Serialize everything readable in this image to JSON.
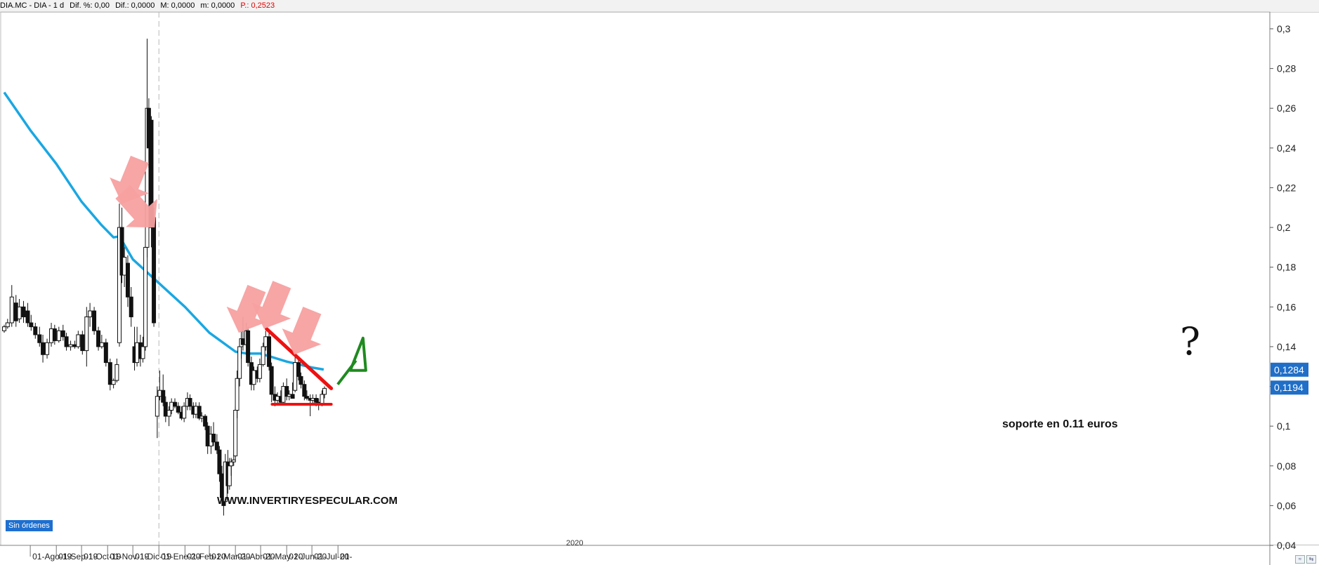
{
  "header": {
    "symbol": "DIA.MC - DIA - 1 d",
    "dif_pct": "Dif. %: 0,00",
    "dif": "Dif.: 0,0000",
    "max": "M: 0,0000",
    "min": "m: 0,0000",
    "price": "P.: 0,2523"
  },
  "watermark": "WWW.INVERTIRYESPECULAR.COM",
  "year_marker": "2020",
  "orders_badge": "Sin órdenes",
  "annotation_support": "soporte en 0.11 euros",
  "annotation_question": "?",
  "colors": {
    "ma": "#1aa7e2",
    "trend": "#ee1111",
    "arrow": "#f7a0a0",
    "green_arrow": "#1f8a1f",
    "price_label_bg": "#1f6fc8"
  },
  "chart_data": {
    "type": "candlestick",
    "title": "",
    "ylim": [
      0.04,
      0.3
    ],
    "yticks": [
      "0,04",
      "0,06",
      "0,08",
      "0,1",
      "0,12",
      "0,14",
      "0,16",
      "0,18",
      "0,2",
      "0,22",
      "0,24",
      "0,26",
      "0,28",
      "0,3"
    ],
    "xticks": [
      "01-Ago-19",
      "01-Sep-19",
      "01-Oct-19",
      "01-Nov-19",
      "01-Dic-19",
      "01-Ene-20",
      "01-Feb-20",
      "01-Mar-20",
      "01-Abr-20",
      "01-May-20",
      "01-Jun-20",
      "01-Jul-20",
      "01-"
    ],
    "price_labels": [
      {
        "value": 0.1284,
        "text": "0,1284"
      },
      {
        "value": 0.1194,
        "text": "0,1194"
      }
    ],
    "series": [
      {
        "name": "",
        "kind": "moving_average",
        "x": [
          "2019-07-01",
          "2019-08-01",
          "2019-09-01",
          "2019-10-01",
          "2019-10-24",
          "2019-11-08",
          "2019-11-15",
          "2019-12-01",
          "2020-01-01",
          "2020-02-01",
          "2020-03-01",
          "2020-04-01",
          "2020-04-15",
          "2020-05-01",
          "2020-06-01",
          "2020-07-01",
          "2020-07-15"
        ],
        "values": [
          0.268,
          0.249,
          0.232,
          0.213,
          0.2015,
          0.195,
          0.1955,
          0.184,
          0.172,
          0.16,
          0.147,
          0.1375,
          0.1365,
          0.1365,
          0.1325,
          0.1295,
          0.1285
        ]
      },
      {
        "name": "",
        "kind": "candles",
        "points": [
          {
            "date": "2019-07-01",
            "o": 0.148,
            "h": 0.151,
            "l": 0.147,
            "c": 0.15
          },
          {
            "date": "2019-07-05",
            "o": 0.15,
            "h": 0.154,
            "l": 0.149,
            "c": 0.152
          },
          {
            "date": "2019-07-10",
            "o": 0.152,
            "h": 0.171,
            "l": 0.15,
            "c": 0.165
          },
          {
            "date": "2019-07-15",
            "o": 0.162,
            "h": 0.166,
            "l": 0.15,
            "c": 0.153
          },
          {
            "date": "2019-07-19",
            "o": 0.154,
            "h": 0.164,
            "l": 0.152,
            "c": 0.16
          },
          {
            "date": "2019-07-24",
            "o": 0.16,
            "h": 0.163,
            "l": 0.152,
            "c": 0.155
          },
          {
            "date": "2019-07-29",
            "o": 0.158,
            "h": 0.162,
            "l": 0.15,
            "c": 0.152
          },
          {
            "date": "2019-08-02",
            "o": 0.152,
            "h": 0.156,
            "l": 0.148,
            "c": 0.15
          },
          {
            "date": "2019-08-07",
            "o": 0.15,
            "h": 0.152,
            "l": 0.144,
            "c": 0.146
          },
          {
            "date": "2019-08-12",
            "o": 0.146,
            "h": 0.15,
            "l": 0.14,
            "c": 0.142
          },
          {
            "date": "2019-08-16",
            "o": 0.142,
            "h": 0.146,
            "l": 0.132,
            "c": 0.136
          },
          {
            "date": "2019-08-21",
            "o": 0.136,
            "h": 0.144,
            "l": 0.134,
            "c": 0.142
          },
          {
            "date": "2019-08-26",
            "o": 0.142,
            "h": 0.152,
            "l": 0.14,
            "c": 0.149
          },
          {
            "date": "2019-08-30",
            "o": 0.149,
            "h": 0.151,
            "l": 0.141,
            "c": 0.143
          },
          {
            "date": "2019-09-04",
            "o": 0.143,
            "h": 0.15,
            "l": 0.142,
            "c": 0.148
          },
          {
            "date": "2019-09-09",
            "o": 0.148,
            "h": 0.151,
            "l": 0.143,
            "c": 0.145
          },
          {
            "date": "2019-09-13",
            "o": 0.145,
            "h": 0.147,
            "l": 0.138,
            "c": 0.14
          },
          {
            "date": "2019-09-18",
            "o": 0.14,
            "h": 0.143,
            "l": 0.138,
            "c": 0.141
          },
          {
            "date": "2019-09-23",
            "o": 0.141,
            "h": 0.143,
            "l": 0.139,
            "c": 0.14
          },
          {
            "date": "2019-09-27",
            "o": 0.14,
            "h": 0.148,
            "l": 0.139,
            "c": 0.146
          },
          {
            "date": "2019-10-02",
            "o": 0.146,
            "h": 0.148,
            "l": 0.136,
            "c": 0.138
          },
          {
            "date": "2019-10-07",
            "o": 0.138,
            "h": 0.16,
            "l": 0.13,
            "c": 0.155
          },
          {
            "date": "2019-10-11",
            "o": 0.155,
            "h": 0.162,
            "l": 0.15,
            "c": 0.158
          },
          {
            "date": "2019-10-16",
            "o": 0.158,
            "h": 0.16,
            "l": 0.146,
            "c": 0.148
          },
          {
            "date": "2019-10-21",
            "o": 0.148,
            "h": 0.15,
            "l": 0.138,
            "c": 0.14
          },
          {
            "date": "2019-10-25",
            "o": 0.14,
            "h": 0.146,
            "l": 0.139,
            "c": 0.142
          },
          {
            "date": "2019-10-30",
            "o": 0.142,
            "h": 0.144,
            "l": 0.13,
            "c": 0.132
          },
          {
            "date": "2019-11-04",
            "o": 0.132,
            "h": 0.134,
            "l": 0.118,
            "c": 0.121
          },
          {
            "date": "2019-11-08",
            "o": 0.121,
            "h": 0.124,
            "l": 0.119,
            "c": 0.123
          },
          {
            "date": "2019-11-12",
            "o": 0.123,
            "h": 0.134,
            "l": 0.122,
            "c": 0.131
          },
          {
            "date": "2019-11-15",
            "o": 0.142,
            "h": 0.212,
            "l": 0.14,
            "c": 0.2
          },
          {
            "date": "2019-11-18",
            "o": 0.2,
            "h": 0.21,
            "l": 0.172,
            "c": 0.176
          },
          {
            "date": "2019-11-21",
            "o": 0.176,
            "h": 0.19,
            "l": 0.17,
            "c": 0.185
          },
          {
            "date": "2019-11-25",
            "o": 0.182,
            "h": 0.186,
            "l": 0.16,
            "c": 0.165
          },
          {
            "date": "2019-11-29",
            "o": 0.165,
            "h": 0.17,
            "l": 0.15,
            "c": 0.155
          },
          {
            "date": "2019-12-03",
            "o": 0.14,
            "h": 0.15,
            "l": 0.128,
            "c": 0.132
          },
          {
            "date": "2019-12-06",
            "o": 0.132,
            "h": 0.15,
            "l": 0.13,
            "c": 0.142
          },
          {
            "date": "2019-12-10",
            "o": 0.142,
            "h": 0.146,
            "l": 0.13,
            "c": 0.134
          },
          {
            "date": "2019-12-13",
            "o": 0.134,
            "h": 0.145,
            "l": 0.132,
            "c": 0.14
          },
          {
            "date": "2019-12-16",
            "o": 0.14,
            "h": 0.196,
            "l": 0.138,
            "c": 0.19
          },
          {
            "date": "2019-12-18",
            "o": 0.19,
            "h": 0.295,
            "l": 0.185,
            "c": 0.26
          },
          {
            "date": "2019-12-20",
            "o": 0.26,
            "h": 0.265,
            "l": 0.23,
            "c": 0.24
          },
          {
            "date": "2019-12-23",
            "o": 0.254,
            "h": 0.256,
            "l": 0.19,
            "c": 0.2
          },
          {
            "date": "2019-12-26",
            "o": 0.205,
            "h": 0.21,
            "l": 0.15,
            "c": 0.152
          },
          {
            "date": "2019-12-30",
            "o": 0.105,
            "h": 0.12,
            "l": 0.094,
            "c": 0.115
          },
          {
            "date": "2020-01-02",
            "o": 0.115,
            "h": 0.128,
            "l": 0.113,
            "c": 0.118
          },
          {
            "date": "2020-01-06",
            "o": 0.118,
            "h": 0.126,
            "l": 0.11,
            "c": 0.112
          },
          {
            "date": "2020-01-09",
            "o": 0.112,
            "h": 0.115,
            "l": 0.102,
            "c": 0.105
          },
          {
            "date": "2020-01-13",
            "o": 0.105,
            "h": 0.11,
            "l": 0.1,
            "c": 0.108
          },
          {
            "date": "2020-01-16",
            "o": 0.108,
            "h": 0.114,
            "l": 0.106,
            "c": 0.112
          },
          {
            "date": "2020-01-20",
            "o": 0.112,
            "h": 0.114,
            "l": 0.109,
            "c": 0.11
          },
          {
            "date": "2020-01-24",
            "o": 0.11,
            "h": 0.112,
            "l": 0.106,
            "c": 0.107
          },
          {
            "date": "2020-01-28",
            "o": 0.107,
            "h": 0.11,
            "l": 0.103,
            "c": 0.104
          },
          {
            "date": "2020-01-31",
            "o": 0.104,
            "h": 0.112,
            "l": 0.102,
            "c": 0.11
          },
          {
            "date": "2020-02-04",
            "o": 0.11,
            "h": 0.117,
            "l": 0.108,
            "c": 0.114
          },
          {
            "date": "2020-02-07",
            "o": 0.114,
            "h": 0.116,
            "l": 0.108,
            "c": 0.11
          },
          {
            "date": "2020-02-11",
            "o": 0.11,
            "h": 0.112,
            "l": 0.104,
            "c": 0.106
          },
          {
            "date": "2020-02-14",
            "o": 0.106,
            "h": 0.112,
            "l": 0.104,
            "c": 0.11
          },
          {
            "date": "2020-02-18",
            "o": 0.11,
            "h": 0.112,
            "l": 0.103,
            "c": 0.104
          },
          {
            "date": "2020-02-21",
            "o": 0.104,
            "h": 0.107,
            "l": 0.102,
            "c": 0.105
          },
          {
            "date": "2020-02-25",
            "o": 0.105,
            "h": 0.106,
            "l": 0.098,
            "c": 0.1
          },
          {
            "date": "2020-02-28",
            "o": 0.1,
            "h": 0.102,
            "l": 0.086,
            "c": 0.09
          },
          {
            "date": "2020-03-03",
            "o": 0.09,
            "h": 0.1,
            "l": 0.086,
            "c": 0.096
          },
          {
            "date": "2020-03-06",
            "o": 0.096,
            "h": 0.102,
            "l": 0.09,
            "c": 0.092
          },
          {
            "date": "2020-03-10",
            "o": 0.092,
            "h": 0.096,
            "l": 0.086,
            "c": 0.088
          },
          {
            "date": "2020-03-13",
            "o": 0.088,
            "h": 0.09,
            "l": 0.072,
            "c": 0.076
          },
          {
            "date": "2020-03-16",
            "o": 0.076,
            "h": 0.08,
            "l": 0.06,
            "c": 0.064
          },
          {
            "date": "2020-03-18",
            "o": 0.064,
            "h": 0.066,
            "l": 0.055,
            "c": 0.06
          },
          {
            "date": "2020-03-20",
            "o": 0.062,
            "h": 0.086,
            "l": 0.06,
            "c": 0.082
          },
          {
            "date": "2020-03-23",
            "o": 0.082,
            "h": 0.088,
            "l": 0.066,
            "c": 0.07
          },
          {
            "date": "2020-03-25",
            "o": 0.07,
            "h": 0.084,
            "l": 0.068,
            "c": 0.08
          },
          {
            "date": "2020-03-27",
            "o": 0.08,
            "h": 0.084,
            "l": 0.075,
            "c": 0.082
          },
          {
            "date": "2020-03-30",
            "o": 0.082,
            "h": 0.086,
            "l": 0.08,
            "c": 0.083
          },
          {
            "date": "2020-04-01",
            "o": 0.085,
            "h": 0.11,
            "l": 0.083,
            "c": 0.108
          },
          {
            "date": "2020-04-03",
            "o": 0.108,
            "h": 0.128,
            "l": 0.104,
            "c": 0.124
          },
          {
            "date": "2020-04-06",
            "o": 0.124,
            "h": 0.144,
            "l": 0.12,
            "c": 0.14
          },
          {
            "date": "2020-04-08",
            "o": 0.14,
            "h": 0.148,
            "l": 0.134,
            "c": 0.144
          },
          {
            "date": "2020-04-10",
            "o": 0.144,
            "h": 0.155,
            "l": 0.138,
            "c": 0.141
          },
          {
            "date": "2020-04-14",
            "o": 0.141,
            "h": 0.152,
            "l": 0.136,
            "c": 0.148
          },
          {
            "date": "2020-04-16",
            "o": 0.148,
            "h": 0.15,
            "l": 0.13,
            "c": 0.132
          },
          {
            "date": "2020-04-20",
            "o": 0.132,
            "h": 0.135,
            "l": 0.118,
            "c": 0.121
          },
          {
            "date": "2020-04-23",
            "o": 0.121,
            "h": 0.13,
            "l": 0.118,
            "c": 0.128
          },
          {
            "date": "2020-04-27",
            "o": 0.128,
            "h": 0.13,
            "l": 0.122,
            "c": 0.124
          },
          {
            "date": "2020-04-30",
            "o": 0.124,
            "h": 0.134,
            "l": 0.122,
            "c": 0.131
          },
          {
            "date": "2020-05-04",
            "o": 0.131,
            "h": 0.142,
            "l": 0.13,
            "c": 0.14
          },
          {
            "date": "2020-05-07",
            "o": 0.14,
            "h": 0.148,
            "l": 0.138,
            "c": 0.145
          },
          {
            "date": "2020-05-11",
            "o": 0.145,
            "h": 0.149,
            "l": 0.128,
            "c": 0.13
          },
          {
            "date": "2020-05-14",
            "o": 0.13,
            "h": 0.132,
            "l": 0.112,
            "c": 0.116
          },
          {
            "date": "2020-05-18",
            "o": 0.116,
            "h": 0.12,
            "l": 0.11,
            "c": 0.113
          },
          {
            "date": "2020-05-21",
            "o": 0.113,
            "h": 0.117,
            "l": 0.111,
            "c": 0.115
          },
          {
            "date": "2020-05-25",
            "o": 0.115,
            "h": 0.118,
            "l": 0.111,
            "c": 0.112
          },
          {
            "date": "2020-05-28",
            "o": 0.112,
            "h": 0.122,
            "l": 0.111,
            "c": 0.12
          },
          {
            "date": "2020-06-01",
            "o": 0.12,
            "h": 0.124,
            "l": 0.113,
            "c": 0.115
          },
          {
            "date": "2020-06-04",
            "o": 0.115,
            "h": 0.118,
            "l": 0.113,
            "c": 0.116
          },
          {
            "date": "2020-06-08",
            "o": 0.116,
            "h": 0.122,
            "l": 0.114,
            "c": 0.114
          },
          {
            "date": "2020-06-11",
            "o": 0.118,
            "h": 0.135,
            "l": 0.117,
            "c": 0.132
          },
          {
            "date": "2020-06-15",
            "o": 0.132,
            "h": 0.134,
            "l": 0.123,
            "c": 0.125
          },
          {
            "date": "2020-06-18",
            "o": 0.125,
            "h": 0.127,
            "l": 0.119,
            "c": 0.121
          },
          {
            "date": "2020-06-22",
            "o": 0.121,
            "h": 0.123,
            "l": 0.113,
            "c": 0.115
          },
          {
            "date": "2020-06-25",
            "o": 0.115,
            "h": 0.118,
            "l": 0.113,
            "c": 0.114
          },
          {
            "date": "2020-06-29",
            "o": 0.114,
            "h": 0.116,
            "l": 0.105,
            "c": 0.113
          },
          {
            "date": "2020-07-02",
            "o": 0.113,
            "h": 0.116,
            "l": 0.111,
            "c": 0.114
          },
          {
            "date": "2020-07-06",
            "o": 0.114,
            "h": 0.116,
            "l": 0.11,
            "c": 0.112
          },
          {
            "date": "2020-07-09",
            "o": 0.112,
            "h": 0.114,
            "l": 0.108,
            "c": 0.111
          },
          {
            "date": "2020-07-13",
            "o": 0.111,
            "h": 0.118,
            "l": 0.11,
            "c": 0.116
          },
          {
            "date": "2020-07-16",
            "o": 0.116,
            "h": 0.12,
            "l": 0.114,
            "c": 0.119
          }
        ]
      }
    ],
    "annotations": {
      "resistance_line": [
        {
          "date": "2020-05-08",
          "value": 0.149
        },
        {
          "date": "2020-07-24",
          "value": 0.119
        }
      ],
      "support_line": [
        {
          "date": "2020-05-08",
          "value": 0.111
        },
        {
          "date": "2020-07-24",
          "value": 0.111
        }
      ],
      "arrows_down_at": [
        {
          "date": "2019-11-18",
          "value": 0.212
        },
        {
          "date": "2019-12-27",
          "value": 0.2
        },
        {
          "date": "2020-04-05",
          "value": 0.147
        },
        {
          "date": "2020-05-05",
          "value": 0.149
        },
        {
          "date": "2020-06-10",
          "value": 0.136
        }
      ]
    }
  }
}
